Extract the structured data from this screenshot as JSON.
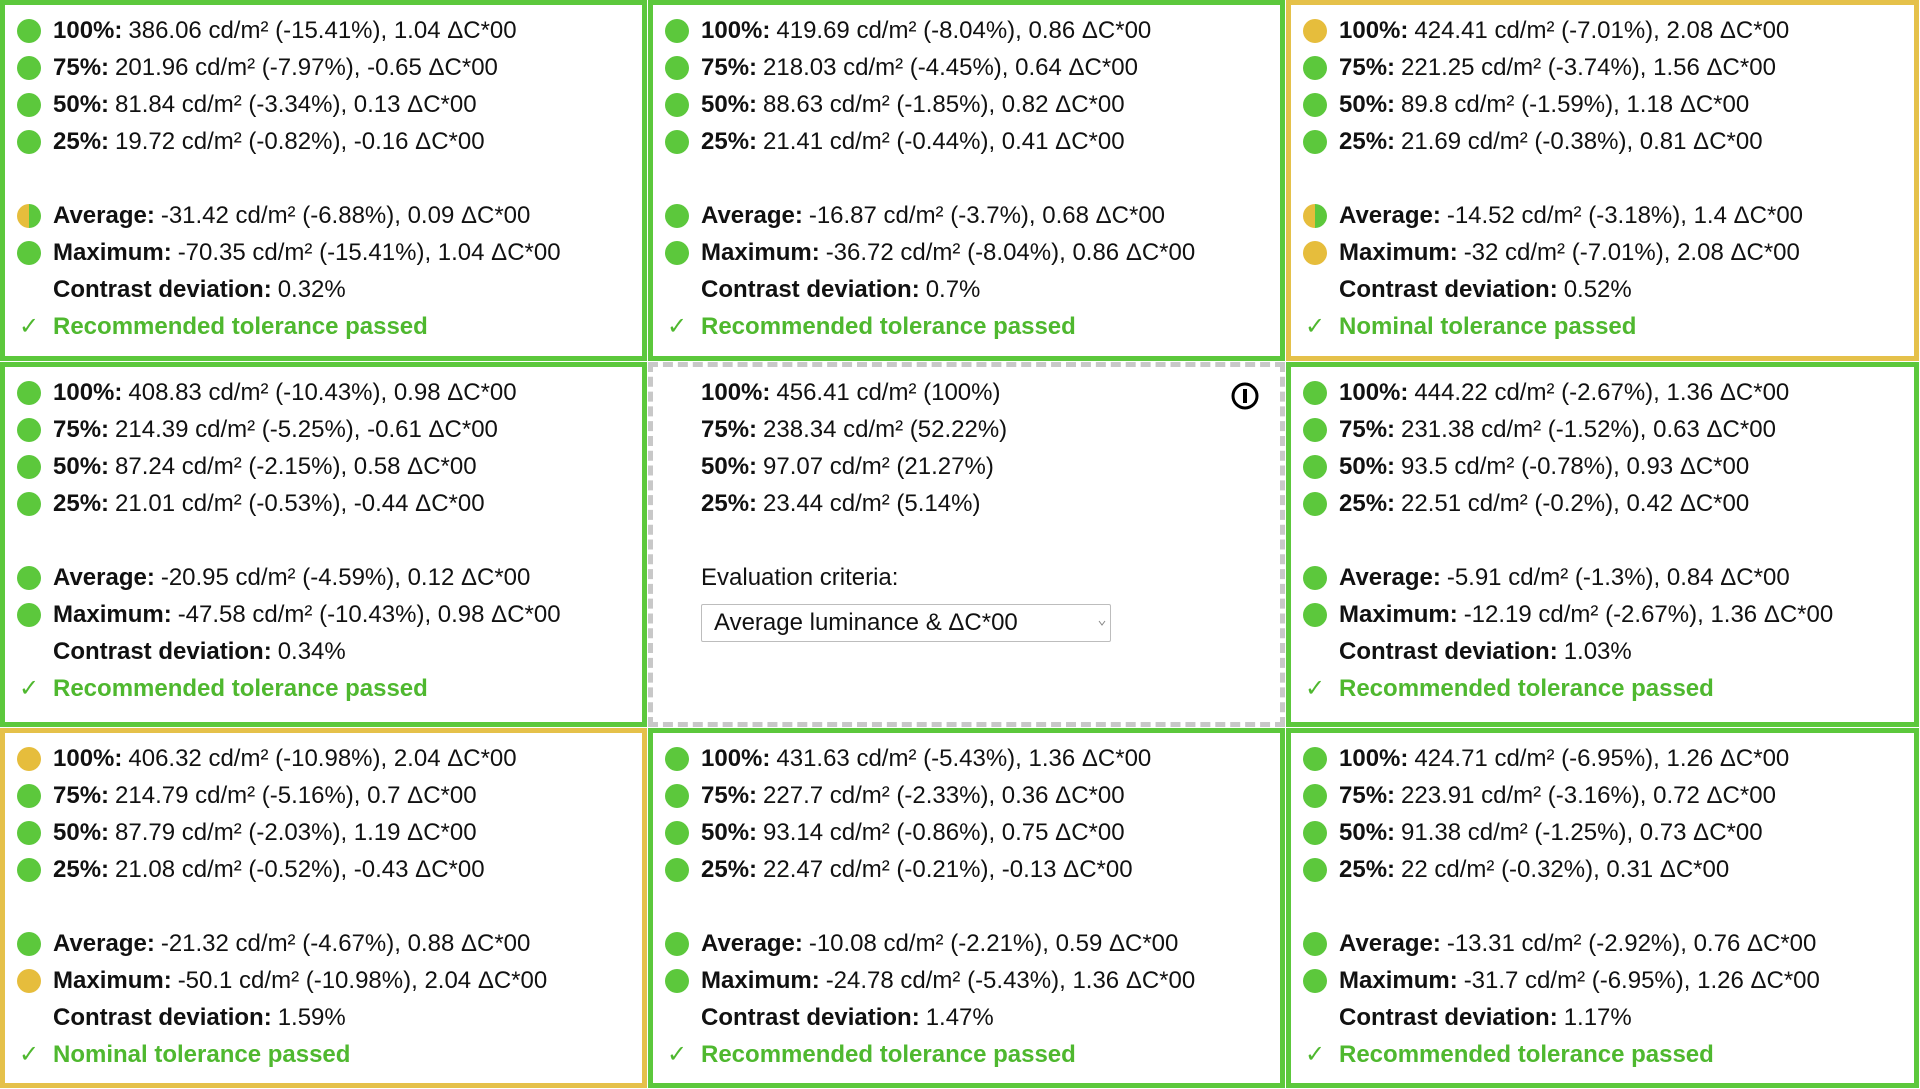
{
  "cells": [
    {
      "border": "#5cc83c",
      "border_style": "solid",
      "levels": [
        {
          "label": "100%:",
          "value": "386.06 cd/m² (-15.41%), 1.04 ΔC*00",
          "dot": "#5cc83c"
        },
        {
          "label": "75%:",
          "value": "201.96 cd/m² (-7.97%), -0.65 ΔC*00",
          "dot": "#5cc83c"
        },
        {
          "label": "50%:",
          "value": "81.84 cd/m² (-3.34%), 0.13 ΔC*00",
          "dot": "#5cc83c"
        },
        {
          "label": "25%:",
          "value": "19.72 cd/m² (-0.82%), -0.16 ΔC*00",
          "dot": "#5cc83c"
        }
      ],
      "summary": [
        {
          "label": "Average:",
          "value": "-31.42 cd/m² (-6.88%), 0.09 ΔC*00",
          "dot": [
            "#e6bd3c",
            "#5cc83c"
          ]
        },
        {
          "label": "Maximum:",
          "value": "-70.35 cd/m² (-15.41%), 1.04 ΔC*00",
          "dot": "#5cc83c"
        }
      ],
      "contrast": {
        "label": "Contrast deviation:",
        "value": "0.32%"
      },
      "result": {
        "icon": "✓",
        "text": "Recommended tolerance passed"
      }
    },
    {
      "border": "#5cc83c",
      "border_style": "solid",
      "levels": [
        {
          "label": "100%:",
          "value": "419.69 cd/m² (-8.04%), 0.86 ΔC*00",
          "dot": "#5cc83c"
        },
        {
          "label": "75%:",
          "value": "218.03 cd/m² (-4.45%), 0.64 ΔC*00",
          "dot": "#5cc83c"
        },
        {
          "label": "50%:",
          "value": "88.63 cd/m² (-1.85%), 0.82 ΔC*00",
          "dot": "#5cc83c"
        },
        {
          "label": "25%:",
          "value": "21.41 cd/m² (-0.44%), 0.41 ΔC*00",
          "dot": "#5cc83c"
        }
      ],
      "summary": [
        {
          "label": "Average:",
          "value": "-16.87 cd/m² (-3.7%), 0.68 ΔC*00",
          "dot": "#5cc83c"
        },
        {
          "label": "Maximum:",
          "value": "-36.72 cd/m² (-8.04%), 0.86 ΔC*00",
          "dot": "#5cc83c"
        }
      ],
      "contrast": {
        "label": "Contrast deviation:",
        "value": "0.7%"
      },
      "result": {
        "icon": "✓",
        "text": "Recommended tolerance passed"
      }
    },
    {
      "border": "#e5c14a",
      "border_style": "solid",
      "levels": [
        {
          "label": "100%:",
          "value": "424.41 cd/m² (-7.01%), 2.08 ΔC*00",
          "dot": "#e6bd3c"
        },
        {
          "label": "75%:",
          "value": "221.25 cd/m² (-3.74%), 1.56 ΔC*00",
          "dot": "#5cc83c"
        },
        {
          "label": "50%:",
          "value": "89.8 cd/m² (-1.59%), 1.18 ΔC*00",
          "dot": "#5cc83c"
        },
        {
          "label": "25%:",
          "value": "21.69 cd/m² (-0.38%), 0.81 ΔC*00",
          "dot": "#5cc83c"
        }
      ],
      "summary": [
        {
          "label": "Average:",
          "value": "-14.52 cd/m² (-3.18%), 1.4 ΔC*00",
          "dot": [
            "#e6bd3c",
            "#5cc83c"
          ]
        },
        {
          "label": "Maximum:",
          "value": "-32 cd/m² (-7.01%), 2.08 ΔC*00",
          "dot": "#e6bd3c"
        }
      ],
      "contrast": {
        "label": "Contrast deviation:",
        "value": "0.52%"
      },
      "result": {
        "icon": "✓",
        "text": "Nominal tolerance passed"
      }
    },
    {
      "border": "#5cc83c",
      "border_style": "solid",
      "levels": [
        {
          "label": "100%:",
          "value": "408.83 cd/m² (-10.43%), 0.98 ΔC*00",
          "dot": "#5cc83c"
        },
        {
          "label": "75%:",
          "value": "214.39 cd/m² (-5.25%), -0.61 ΔC*00",
          "dot": "#5cc83c"
        },
        {
          "label": "50%:",
          "value": "87.24 cd/m² (-2.15%), 0.58 ΔC*00",
          "dot": "#5cc83c"
        },
        {
          "label": "25%:",
          "value": "21.01 cd/m² (-0.53%), -0.44 ΔC*00",
          "dot": "#5cc83c"
        }
      ],
      "summary": [
        {
          "label": "Average:",
          "value": "-20.95 cd/m² (-4.59%), 0.12 ΔC*00",
          "dot": "#5cc83c"
        },
        {
          "label": "Maximum:",
          "value": "-47.58 cd/m² (-10.43%), 0.98 ΔC*00",
          "dot": "#5cc83c"
        }
      ],
      "contrast": {
        "label": "Contrast deviation:",
        "value": "0.34%"
      },
      "result": {
        "icon": "✓",
        "text": "Recommended tolerance passed"
      }
    },
    {
      "border": "#c8c8c8",
      "border_style": "dashed",
      "levels": [
        {
          "label": "100%:",
          "value": "456.41 cd/m² (100%)"
        },
        {
          "label": "75%:",
          "value": "238.34 cd/m² (52.22%)"
        },
        {
          "label": "50%:",
          "value": "97.07 cd/m² (21.27%)"
        },
        {
          "label": "25%:",
          "value": "23.44 cd/m² (5.14%)"
        }
      ],
      "criteria_label": "Evaluation criteria:",
      "criteria_value": "Average luminance & ΔC*00"
    },
    {
      "border": "#5cc83c",
      "border_style": "solid",
      "levels": [
        {
          "label": "100%:",
          "value": "444.22 cd/m² (-2.67%), 1.36 ΔC*00",
          "dot": "#5cc83c"
        },
        {
          "label": "75%:",
          "value": "231.38 cd/m² (-1.52%), 0.63 ΔC*00",
          "dot": "#5cc83c"
        },
        {
          "label": "50%:",
          "value": "93.5 cd/m² (-0.78%), 0.93 ΔC*00",
          "dot": "#5cc83c"
        },
        {
          "label": "25%:",
          "value": "22.51 cd/m² (-0.2%), 0.42 ΔC*00",
          "dot": "#5cc83c"
        }
      ],
      "summary": [
        {
          "label": "Average:",
          "value": "-5.91 cd/m² (-1.3%), 0.84 ΔC*00",
          "dot": "#5cc83c"
        },
        {
          "label": "Maximum:",
          "value": "-12.19 cd/m² (-2.67%), 1.36 ΔC*00",
          "dot": "#5cc83c"
        }
      ],
      "contrast": {
        "label": "Contrast deviation:",
        "value": "1.03%"
      },
      "result": {
        "icon": "✓",
        "text": "Recommended tolerance passed"
      }
    },
    {
      "border": "#e5c14a",
      "border_style": "solid",
      "levels": [
        {
          "label": "100%:",
          "value": "406.32 cd/m² (-10.98%), 2.04 ΔC*00",
          "dot": "#e6bd3c"
        },
        {
          "label": "75%:",
          "value": "214.79 cd/m² (-5.16%), 0.7 ΔC*00",
          "dot": "#5cc83c"
        },
        {
          "label": "50%:",
          "value": "87.79 cd/m² (-2.03%), 1.19 ΔC*00",
          "dot": "#5cc83c"
        },
        {
          "label": "25%:",
          "value": "21.08 cd/m² (-0.52%), -0.43 ΔC*00",
          "dot": "#5cc83c"
        }
      ],
      "summary": [
        {
          "label": "Average:",
          "value": "-21.32 cd/m² (-4.67%), 0.88 ΔC*00",
          "dot": "#5cc83c"
        },
        {
          "label": "Maximum:",
          "value": "-50.1 cd/m² (-10.98%), 2.04 ΔC*00",
          "dot": "#e6bd3c"
        }
      ],
      "contrast": {
        "label": "Contrast deviation:",
        "value": "1.59%"
      },
      "result": {
        "icon": "✓",
        "text": "Nominal tolerance passed"
      }
    },
    {
      "border": "#5cc83c",
      "border_style": "solid",
      "levels": [
        {
          "label": "100%:",
          "value": "431.63 cd/m² (-5.43%), 1.36 ΔC*00",
          "dot": "#5cc83c"
        },
        {
          "label": "75%:",
          "value": "227.7 cd/m² (-2.33%), 0.36 ΔC*00",
          "dot": "#5cc83c"
        },
        {
          "label": "50%:",
          "value": "93.14 cd/m² (-0.86%), 0.75 ΔC*00",
          "dot": "#5cc83c"
        },
        {
          "label": "25%:",
          "value": "22.47 cd/m² (-0.21%), -0.13 ΔC*00",
          "dot": "#5cc83c"
        }
      ],
      "summary": [
        {
          "label": "Average:",
          "value": "-10.08 cd/m² (-2.21%), 0.59 ΔC*00",
          "dot": "#5cc83c"
        },
        {
          "label": "Maximum:",
          "value": "-24.78 cd/m² (-5.43%), 1.36 ΔC*00",
          "dot": "#5cc83c"
        }
      ],
      "contrast": {
        "label": "Contrast deviation:",
        "value": "1.47%"
      },
      "result": {
        "icon": "✓",
        "text": "Recommended tolerance passed"
      }
    },
    {
      "border": "#5cc83c",
      "border_style": "solid",
      "levels": [
        {
          "label": "100%:",
          "value": "424.71 cd/m² (-6.95%), 1.26 ΔC*00",
          "dot": "#5cc83c"
        },
        {
          "label": "75%:",
          "value": "223.91 cd/m² (-3.16%), 0.72 ΔC*00",
          "dot": "#5cc83c"
        },
        {
          "label": "50%:",
          "value": "91.38 cd/m² (-1.25%), 0.73 ΔC*00",
          "dot": "#5cc83c"
        },
        {
          "label": "25%:",
          "value": "22 cd/m² (-0.32%), 0.31 ΔC*00",
          "dot": "#5cc83c"
        }
      ],
      "summary": [
        {
          "label": "Average:",
          "value": "-13.31 cd/m² (-2.92%), 0.76 ΔC*00",
          "dot": "#5cc83c"
        },
        {
          "label": "Maximum:",
          "value": "-31.7 cd/m² (-6.95%), 1.26 ΔC*00",
          "dot": "#5cc83c"
        }
      ],
      "contrast": {
        "label": "Contrast deviation:",
        "value": "1.17%"
      },
      "result": {
        "icon": "✓",
        "text": "Recommended tolerance passed"
      }
    }
  ]
}
